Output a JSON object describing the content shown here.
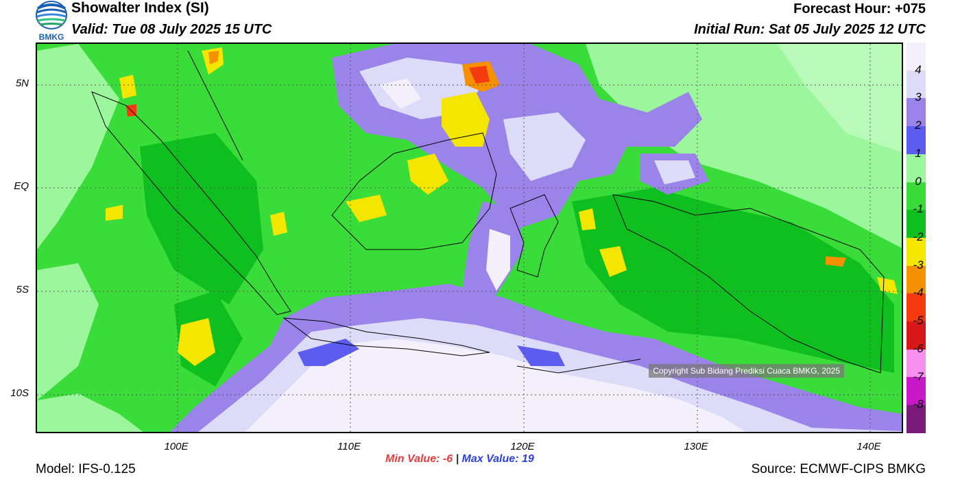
{
  "header": {
    "agency": "BMKG",
    "title": "Showalter Index (SI)",
    "valid": "Valid: Tue 08 July 2025 15 UTC",
    "forecast_hour": "Forecast Hour: +075",
    "initial_run": "Initial Run: Sat 05 July 2025 12 UTC"
  },
  "map": {
    "lat_labels": [
      "5N",
      "EQ",
      "5S",
      "10S"
    ],
    "lon_labels": [
      "100E",
      "110E",
      "120E",
      "130E",
      "140E"
    ],
    "copyright": "Copyright Sub Bidang Prediksi Cuaca BMKG, 2025"
  },
  "colorbar": {
    "levels": [
      "4",
      "3",
      "2",
      "1",
      "0",
      "-1",
      "-2",
      "-3",
      "-4",
      "-5",
      "-6",
      "-7",
      "-8"
    ],
    "colors": [
      "#f3f0fb",
      "#dcdcf8",
      "#9a84ea",
      "#5c5cf0",
      "#9cf79c",
      "#3adc3a",
      "#0fbf1f",
      "#f5e600",
      "#f59000",
      "#f53a10",
      "#d81818",
      "#f890f0",
      "#c818c8",
      "#7a1a7a"
    ]
  },
  "footer": {
    "min_label": "Min Value:",
    "min_value": "-6",
    "separator": "|",
    "max_label": "Max Value:",
    "max_value": "19",
    "model": "Model: IFS-0.125",
    "source": "Source: ECMWF-CIPS BMKG"
  }
}
